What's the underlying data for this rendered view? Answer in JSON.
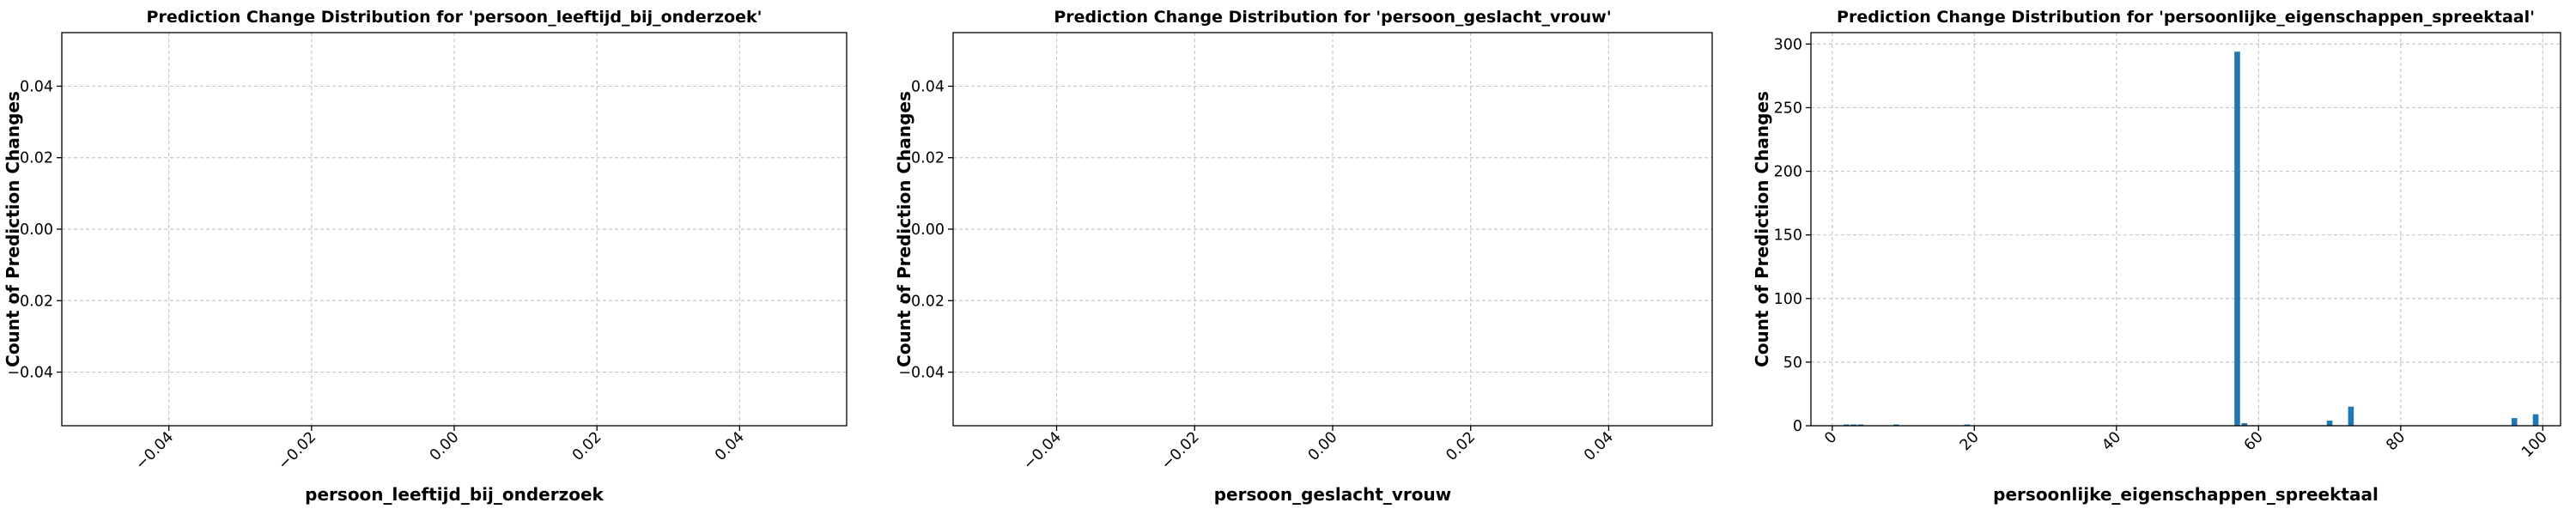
{
  "chart_data": [
    {
      "type": "bar",
      "title": "Prediction Change Distribution for 'persoon_leeftijd_bij_onderzoek'",
      "xlabel": "persoon_leeftijd_bij_onderzoek",
      "ylabel": "Count of Prediction Changes",
      "xlim": [
        -0.055,
        0.055
      ],
      "ylim": [
        -0.055,
        0.055
      ],
      "xticks": [
        -0.04,
        -0.02,
        0.0,
        0.02,
        0.04
      ],
      "xtick_labels": [
        "−0.04",
        "−0.02",
        "0.00",
        "0.02",
        "0.04"
      ],
      "yticks": [
        -0.04,
        -0.02,
        0.0,
        0.02,
        0.04
      ],
      "ytick_labels": [
        "−0.04",
        "−0.02",
        "0.00",
        "0.02",
        "0.04"
      ],
      "grid": true,
      "bar_width": 0.8,
      "categories": [],
      "values": []
    },
    {
      "type": "bar",
      "title": "Prediction Change Distribution for 'persoon_geslacht_vrouw'",
      "xlabel": "persoon_geslacht_vrouw",
      "ylabel": "Count of Prediction Changes",
      "xlim": [
        -0.055,
        0.055
      ],
      "ylim": [
        -0.055,
        0.055
      ],
      "xticks": [
        -0.04,
        -0.02,
        0.0,
        0.02,
        0.04
      ],
      "xtick_labels": [
        "−0.04",
        "−0.02",
        "0.00",
        "0.02",
        "0.04"
      ],
      "yticks": [
        -0.04,
        -0.02,
        0.0,
        0.02,
        0.04
      ],
      "ytick_labels": [
        "−0.04",
        "−0.02",
        "0.00",
        "0.02",
        "0.04"
      ],
      "grid": true,
      "bar_width": 0.8,
      "categories": [],
      "values": []
    },
    {
      "type": "bar",
      "title": "Prediction Change Distribution for 'persoonlijke_eigenschappen_spreektaal'",
      "xlabel": "persoonlijke_eigenschappen_spreektaal",
      "ylabel": "Count of Prediction Changes",
      "xlim": [
        -3,
        102.5
      ],
      "ylim": [
        0,
        309
      ],
      "xticks": [
        0,
        20,
        40,
        60,
        80,
        100
      ],
      "xtick_labels": [
        "0",
        "20",
        "40",
        "60",
        "80",
        "100"
      ],
      "yticks": [
        0,
        50,
        100,
        150,
        200,
        250,
        300
      ],
      "ytick_labels": [
        "0",
        "50",
        "100",
        "150",
        "200",
        "250",
        "300"
      ],
      "grid": true,
      "bar_width": 0.8,
      "categories": [
        2,
        3,
        4,
        9,
        19,
        57,
        58,
        70,
        73,
        96,
        99
      ],
      "values": [
        1,
        1,
        1,
        1,
        1,
        294,
        2,
        4,
        15,
        6,
        9
      ]
    }
  ],
  "style": {
    "bar_color": "#1f77b4",
    "grid_color": "#c8c8c8",
    "axis_color": "#000000"
  }
}
